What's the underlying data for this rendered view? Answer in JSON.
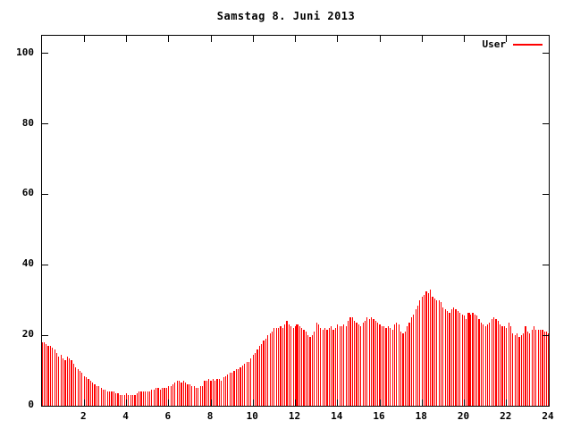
{
  "title": "Samstag 8. Juni 2013",
  "legend": {
    "label": "User",
    "color": "#ff0000"
  },
  "axis_color": "#000000",
  "background_color": "#ffffff",
  "chart_data": {
    "type": "bar",
    "title": "Samstag 8. Juni 2013",
    "xlabel": "",
    "ylabel": "",
    "xlim": [
      0,
      24
    ],
    "ylim": [
      0,
      105
    ],
    "x_ticks": [
      2,
      4,
      6,
      8,
      10,
      12,
      14,
      16,
      18,
      20,
      22,
      24
    ],
    "y_ticks": [
      0,
      20,
      40,
      60,
      80,
      100
    ],
    "grid": false,
    "legend_position": "top-right",
    "wide_bar_indices": [
      121,
      202
    ],
    "series": [
      {
        "name": "User",
        "color": "#ff0000",
        "x_start": 0,
        "x_step": 0.1,
        "values": [
          18,
          18,
          17.5,
          17,
          17,
          16.5,
          16,
          15,
          14,
          14.5,
          13.5,
          13,
          14,
          13.5,
          13,
          12,
          11,
          10.5,
          10,
          9.5,
          8.5,
          8,
          7.5,
          7,
          6.5,
          6,
          5.5,
          5.5,
          5,
          4.5,
          4.5,
          4,
          4,
          4,
          4,
          3.5,
          3.5,
          3,
          3,
          3,
          3.5,
          3,
          3,
          3,
          3,
          3.5,
          4,
          4,
          4,
          4,
          4,
          4,
          4.5,
          4.5,
          5,
          5,
          4.5,
          5,
          5,
          5,
          5.5,
          5.5,
          6,
          6.5,
          7,
          7,
          6.5,
          7,
          6.5,
          6,
          6,
          5.5,
          5.5,
          5,
          5,
          5.5,
          5.5,
          7,
          7,
          7.5,
          7,
          7.5,
          7,
          7.5,
          7.5,
          7,
          8,
          8.5,
          9,
          9.5,
          9.5,
          10,
          10.5,
          10.5,
          11,
          11.5,
          12,
          12.5,
          12.5,
          13.5,
          14.5,
          15,
          16,
          17,
          17.5,
          18.5,
          19,
          20,
          20.5,
          21,
          22,
          22,
          22,
          22.5,
          22,
          23,
          24,
          23,
          22.5,
          22,
          22.5,
          23,
          22.5,
          22,
          21.5,
          21,
          20,
          19.5,
          20,
          21,
          23.5,
          23,
          22,
          21.5,
          22,
          21.5,
          22,
          22.5,
          21.5,
          22,
          23,
          22.5,
          22.5,
          23,
          22.5,
          24,
          25,
          25,
          24,
          23.5,
          23,
          22.5,
          23.5,
          24,
          25,
          24.5,
          25,
          24.5,
          24,
          23.5,
          23,
          22.5,
          22.5,
          22,
          22.5,
          22,
          21.5,
          23,
          23.5,
          23,
          21,
          20.5,
          21,
          22.5,
          23.5,
          25,
          26,
          27.5,
          28.5,
          30,
          31,
          31.5,
          32.5,
          32,
          33,
          31,
          30.5,
          30,
          30,
          29.5,
          28,
          27.5,
          27,
          26.5,
          27.5,
          28,
          27.5,
          27,
          26.5,
          26,
          25.5,
          24.5,
          26.5,
          26,
          26.5,
          26,
          25.5,
          24.5,
          23.5,
          23,
          22.5,
          23,
          23.5,
          24.5,
          25,
          24.5,
          24,
          23,
          22.5,
          22.5,
          22,
          23.5,
          22.5,
          20.5,
          20,
          20.5,
          19.5,
          20,
          20.5,
          22.5,
          21,
          20.5,
          21.5,
          22.5,
          21.5,
          21.5,
          21.5,
          21.5,
          21,
          21,
          20.5
        ]
      }
    ]
  }
}
